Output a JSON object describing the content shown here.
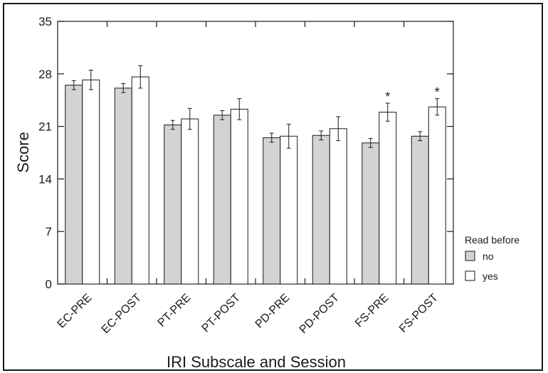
{
  "chart_data": {
    "type": "bar",
    "xlabel": "IRI  Subscale and Session",
    "ylabel": "Score",
    "ylim": [
      0,
      35
    ],
    "yticks": [
      0,
      7,
      14,
      21,
      28,
      35
    ],
    "categories": [
      "EC-PRE",
      "EC-POST",
      "PT-PRE",
      "PT-POST",
      "PD-PRE",
      "PD-POST",
      "FS-PRE",
      "FS-POST"
    ],
    "series": [
      {
        "name": "no",
        "color": "#d3d3d3",
        "values": [
          26.5,
          26.1,
          21.2,
          22.5,
          19.5,
          19.8,
          18.8,
          19.7
        ],
        "errors": [
          0.6,
          0.6,
          0.6,
          0.6,
          0.6,
          0.6,
          0.6,
          0.6
        ]
      },
      {
        "name": "yes",
        "color": "#ffffff",
        "values": [
          27.2,
          27.6,
          22.0,
          23.3,
          19.7,
          20.7,
          22.9,
          23.6
        ],
        "errors": [
          1.3,
          1.5,
          1.4,
          1.4,
          1.6,
          1.6,
          1.2,
          1.1
        ]
      }
    ],
    "annotations": [
      {
        "category": "FS-PRE",
        "series": "yes",
        "text": "*"
      },
      {
        "category": "FS-POST",
        "series": "yes",
        "text": "*"
      }
    ],
    "legend": {
      "title": "Read before",
      "placement": "right"
    },
    "grid": false
  }
}
